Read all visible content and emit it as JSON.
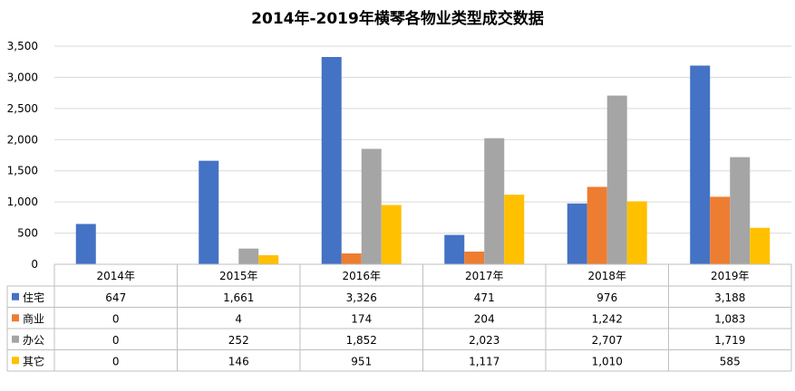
{
  "chart_data": {
    "type": "bar",
    "title": "2014年-2019年横琴各物业类型成交数据",
    "categories": [
      "2014年",
      "2015年",
      "2016年",
      "2017年",
      "2018年",
      "2019年"
    ],
    "ylim": [
      0,
      3500
    ],
    "yticks": [
      0,
      500,
      1000,
      1500,
      2000,
      2500,
      3000,
      3500
    ],
    "ytick_labels": [
      "0",
      "500",
      "1,000",
      "1,500",
      "2,000",
      "2,500",
      "3,000",
      "3,500"
    ],
    "grid": true,
    "legend": "data table below chart",
    "series": [
      {
        "name": "住宅",
        "color": "#4472C4",
        "values": [
          647,
          1661,
          3326,
          471,
          976,
          3188
        ],
        "labels": [
          "647",
          "1,661",
          "3,326",
          "471",
          "976",
          "3,188"
        ]
      },
      {
        "name": "商业",
        "color": "#ED7D31",
        "values": [
          0,
          4,
          174,
          204,
          1242,
          1083
        ],
        "labels": [
          "0",
          "4",
          "174",
          "204",
          "1,242",
          "1,083"
        ]
      },
      {
        "name": "办公",
        "color": "#A5A5A5",
        "values": [
          0,
          252,
          1852,
          2023,
          2707,
          1719
        ],
        "labels": [
          "0",
          "252",
          "1,852",
          "2,023",
          "2,707",
          "1,719"
        ]
      },
      {
        "name": "其它",
        "color": "#FFC000",
        "values": [
          0,
          146,
          951,
          1117,
          1010,
          585
        ],
        "labels": [
          "0",
          "146",
          "951",
          "1,117",
          "1,010",
          "585"
        ]
      }
    ]
  }
}
